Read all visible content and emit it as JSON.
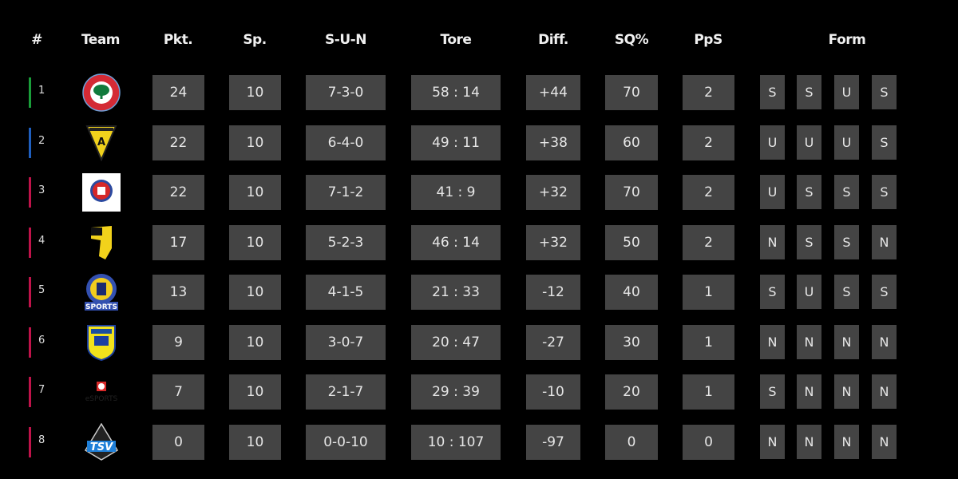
{
  "headers": {
    "rank": "#",
    "team": "Team",
    "pkt": "Pkt.",
    "sp": "Sp.",
    "sun": "S-U-N",
    "tore": "Tore",
    "diff": "Diff.",
    "sq": "SQ%",
    "pps": "PpS",
    "form": "Form"
  },
  "colors": {
    "cell": "#444444",
    "green": "#1a9e3a",
    "blue": "#1f5fbf",
    "red": "#c0134a"
  },
  "rows": [
    {
      "rank": "1",
      "marker": "green",
      "logo": "esc-logo",
      "pkt": "24",
      "sp": "10",
      "sun": "7-3-0",
      "tore": "58 : 14",
      "diff": "+44",
      "sq": "70",
      "pps": "2",
      "form": [
        "S",
        "S",
        "U",
        "S"
      ]
    },
    {
      "rank": "2",
      "marker": "blue",
      "logo": "alemannia-logo",
      "pkt": "22",
      "sp": "10",
      "sun": "6-4-0",
      "tore": "49 : 11",
      "diff": "+38",
      "sq": "60",
      "pps": "2",
      "form": [
        "U",
        "U",
        "U",
        "S"
      ]
    },
    {
      "rank": "3",
      "marker": "red",
      "logo": "wsv-logo",
      "pkt": "22",
      "sp": "10",
      "sun": "7-1-2",
      "tore": "41 : 9",
      "diff": "+32",
      "sq": "70",
      "pps": "2",
      "form": [
        "U",
        "S",
        "S",
        "S"
      ]
    },
    {
      "rank": "4",
      "marker": "red",
      "logo": "yellow-map-logo",
      "pkt": "17",
      "sp": "10",
      "sun": "5-2-3",
      "tore": "46 : 14",
      "diff": "+32",
      "sq": "50",
      "pps": "2",
      "form": [
        "N",
        "S",
        "S",
        "N"
      ]
    },
    {
      "rank": "5",
      "marker": "red",
      "logo": "esports-crest-logo",
      "pkt": "13",
      "sp": "10",
      "sun": "4-1-5",
      "tore": "21 : 33",
      "diff": "-12",
      "sq": "40",
      "pps": "1",
      "form": [
        "S",
        "U",
        "S",
        "S"
      ]
    },
    {
      "rank": "6",
      "marker": "red",
      "logo": "1fc-shield-logo",
      "pkt": "9",
      "sp": "10",
      "sun": "3-0-7",
      "tore": "20 : 47",
      "diff": "-27",
      "sq": "30",
      "pps": "1",
      "form": [
        "N",
        "N",
        "N",
        "N"
      ]
    },
    {
      "rank": "7",
      "marker": "red",
      "logo": "bayer-esports-logo",
      "pkt": "7",
      "sp": "10",
      "sun": "2-1-7",
      "tore": "29 : 39",
      "diff": "-10",
      "sq": "20",
      "pps": "1",
      "form": [
        "S",
        "N",
        "N",
        "N"
      ]
    },
    {
      "rank": "8",
      "marker": "red",
      "logo": "tsv-logo",
      "pkt": "0",
      "sp": "10",
      "sun": "0-0-10",
      "tore": "10 : 107",
      "diff": "-97",
      "sq": "0",
      "pps": "0",
      "form": [
        "N",
        "N",
        "N",
        "N"
      ]
    }
  ]
}
